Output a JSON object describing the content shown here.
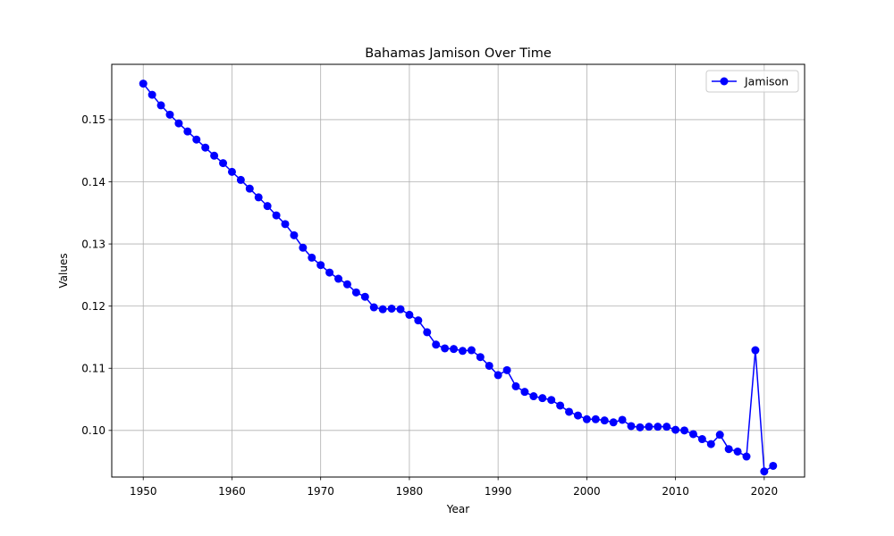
{
  "chart_data": {
    "type": "line",
    "title": "Bahamas Jamison Over Time",
    "xlabel": "Year",
    "ylabel": "Values",
    "xlim": [
      1946.45,
      2024.55
    ],
    "ylim": [
      0.0925,
      0.1589
    ],
    "x_ticks": [
      1950,
      1960,
      1970,
      1980,
      1990,
      2000,
      2010,
      2020
    ],
    "y_ticks": [
      0.1,
      0.11,
      0.12,
      0.13,
      0.14,
      0.15
    ],
    "y_tick_labels": [
      "0.10",
      "0.11",
      "0.12",
      "0.13",
      "0.14",
      "0.15"
    ],
    "grid": true,
    "legend_position": "top-right",
    "series": [
      {
        "name": "Jamison",
        "color": "#0000ff",
        "marker": "circle",
        "x": [
          1950,
          1951,
          1952,
          1953,
          1954,
          1955,
          1956,
          1957,
          1958,
          1959,
          1960,
          1961,
          1962,
          1963,
          1964,
          1965,
          1966,
          1967,
          1968,
          1969,
          1970,
          1971,
          1972,
          1973,
          1974,
          1975,
          1976,
          1977,
          1978,
          1979,
          1980,
          1981,
          1982,
          1983,
          1984,
          1985,
          1986,
          1987,
          1988,
          1989,
          1990,
          1991,
          1992,
          1993,
          1994,
          1995,
          1996,
          1997,
          1998,
          1999,
          2000,
          2001,
          2002,
          2003,
          2004,
          2005,
          2006,
          2007,
          2008,
          2009,
          2010,
          2011,
          2012,
          2013,
          2014,
          2015,
          2016,
          2017,
          2018,
          2019,
          2020,
          2021
        ],
        "values": [
          0.1558,
          0.154,
          0.1523,
          0.1508,
          0.1494,
          0.1481,
          0.1468,
          0.1455,
          0.1442,
          0.143,
          0.1416,
          0.1403,
          0.1389,
          0.1375,
          0.1361,
          0.1346,
          0.1332,
          0.1314,
          0.1294,
          0.1278,
          0.1266,
          0.1254,
          0.1244,
          0.1235,
          0.1222,
          0.1215,
          0.1198,
          0.1195,
          0.1196,
          0.1195,
          0.1186,
          0.1177,
          0.1158,
          0.1138,
          0.1132,
          0.1131,
          0.1128,
          0.1129,
          0.1118,
          0.1104,
          0.1089,
          0.1097,
          0.1071,
          0.1062,
          0.1055,
          0.1052,
          0.1049,
          0.104,
          0.103,
          0.1024,
          0.1018,
          0.1018,
          0.1016,
          0.1013,
          0.1017,
          0.1007,
          0.1005,
          0.1006,
          0.1006,
          0.1006,
          0.1001,
          0.1,
          0.0994,
          0.0986,
          0.0978,
          0.0993,
          0.097,
          0.0966,
          0.0958,
          0.1129,
          0.0934,
          0.0943
        ]
      }
    ]
  }
}
